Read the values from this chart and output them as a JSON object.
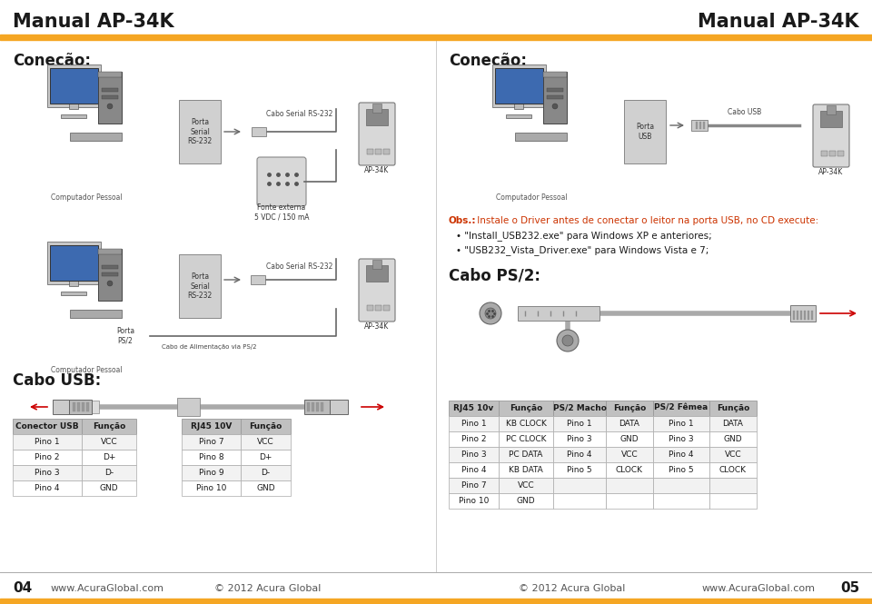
{
  "title_left": "Manual AP-34K",
  "title_right": "Manual AP-34K",
  "header_bar_color": "#f5a623",
  "bg_color": "#ffffff",
  "section1_title": "Coneção:",
  "section2_title": "Coneção:",
  "section3_title": "Cabo USB:",
  "section4_title": "Cabo PS/2:",
  "obs_label": "Obs.:",
  "obs_text": " Instale o Driver antes de conectar o leitor na porta USB, no CD execute:",
  "obs_bullet1": "• \"Install_USB232.exe\" para Windows XP e anteriores;",
  "obs_bullet2": "• \"USB232_Vista_Driver.exe\" para Windows Vista e 7;",
  "obs_color": "#cc3300",
  "footer_left_num": "04",
  "footer_left_site": "www.AcuraGlobal.com",
  "footer_left_copy": "© 2012 Acura Global",
  "footer_right_copy": "© 2012 Acura Global",
  "footer_right_site": "www.AcuraGlobal.com",
  "footer_right_num": "05",
  "label_porta_serial": "Porta\nSerial\nRS-232",
  "label_computador1": "Computador Pessoal",
  "label_cabo_serial": "Cabo Serial RS-232",
  "label_ap34k": "AP-34K",
  "label_fonte": "Fonte externa\n5 VDC / 150 mA",
  "label_porta_serial2": "Porta\nSerial\nRS-232",
  "label_cabo_serial2": "Cabo Serial RS-232",
  "label_ap34k2": "AP-34K",
  "label_porta_ps2": "Porta\nPS/2",
  "label_cabo_ps2_feed": "Cabo de Alimentação via PS/2",
  "label_computador2": "Computador Pessoal",
  "label_porta_usb": "Porta\nUSB",
  "label_computador3": "Computador Pessoal",
  "label_cabo_usb": "Cabo USB",
  "label_ap34k3": "AP-34K",
  "table_usb_header": [
    "Conector USB",
    "Função"
  ],
  "table_usb_rows": [
    [
      "Pino 1",
      "VCC"
    ],
    [
      "Pino 2",
      "D+"
    ],
    [
      "Pino 3",
      "D-"
    ],
    [
      "Pino 4",
      "GND"
    ]
  ],
  "table_rj45_header": [
    "RJ45 10V",
    "Função"
  ],
  "table_rj45_rows": [
    [
      "Pino 7",
      "VCC"
    ],
    [
      "Pino 8",
      "D+"
    ],
    [
      "Pino 9",
      "D-"
    ],
    [
      "Pino 10",
      "GND"
    ]
  ],
  "table_big_header": [
    "RJ45 10v",
    "Função",
    "PS/2 Macho",
    "Função",
    "PS/2 Fêmea",
    "Função"
  ],
  "table_big_rows": [
    [
      "Pino 1",
      "KB CLOCK",
      "Pino 1",
      "DATA",
      "Pino 1",
      "DATA"
    ],
    [
      "Pino 2",
      "PC CLOCK",
      "Pino 3",
      "GND",
      "Pino 3",
      "GND"
    ],
    [
      "Pino 3",
      "PC DATA",
      "Pino 4",
      "VCC",
      "Pino 4",
      "VCC"
    ],
    [
      "Pino 4",
      "KB DATA",
      "Pino 5",
      "CLOCK",
      "Pino 5",
      "CLOCK"
    ],
    [
      "Pino 7",
      "VCC",
      "",
      "",
      "",
      ""
    ],
    [
      "Pino 10",
      "GND",
      "",
      "",
      "",
      ""
    ]
  ]
}
